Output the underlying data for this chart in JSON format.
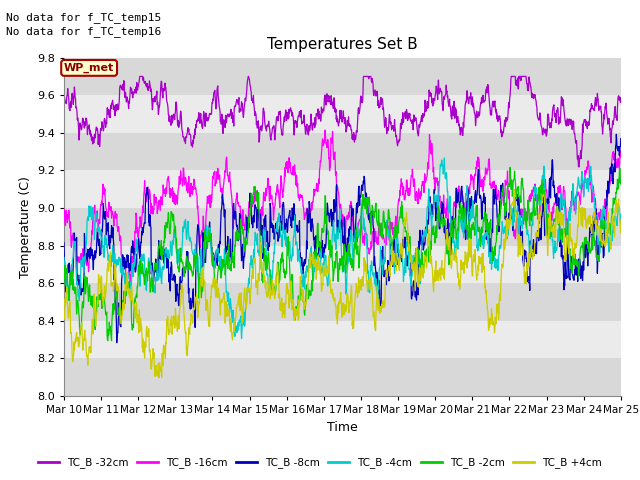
{
  "title": "Temperatures Set B",
  "xlabel": "Time",
  "ylabel": "Temperature (C)",
  "ylim": [
    8.0,
    9.8
  ],
  "note_lines": [
    "No data for f_TC_temp15",
    "No data for f_TC_temp16"
  ],
  "wp_met_label": "WP_met",
  "legend_entries": [
    "TC_B -32cm",
    "TC_B -16cm",
    "TC_B -8cm",
    "TC_B -4cm",
    "TC_B -2cm",
    "TC_B +4cm"
  ],
  "line_colors": [
    "#aa00cc",
    "#ff00ff",
    "#0000bb",
    "#00cccc",
    "#00cc00",
    "#cccc00"
  ],
  "x_tick_labels": [
    "Mar 10",
    "Mar 11",
    "Mar 12",
    "Mar 13",
    "Mar 14",
    "Mar 15",
    "Mar 16",
    "Mar 17",
    "Mar 18",
    "Mar 19",
    "Mar 20",
    "Mar 21",
    "Mar 22",
    "Mar 23",
    "Mar 24",
    "Mar 25"
  ],
  "n_points": 1500,
  "seed": 42
}
